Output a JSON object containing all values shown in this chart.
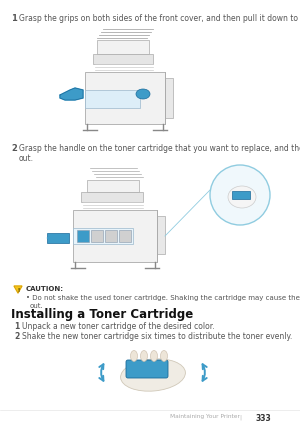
{
  "bg_color": "#ffffff",
  "text_color": "#555555",
  "step1_label": "1",
  "step1_text": "Grasp the grips on both sides of the front cover, and then pull it down to open.",
  "step2_label": "2",
  "step2_text": "Grasp the handle on the toner cartridge that you want to replace, and then pull it\nout.",
  "caution_label": "CAUTION:",
  "caution_line1": "Do not shake the used toner cartridge. Shaking the cartridge may cause the toner to spill",
  "caution_line2": "out.",
  "section_title": "Installing a Toner Cartridge",
  "install_step1_label": "1",
  "install_step1_text": "Unpack a new toner cartridge of the desired color.",
  "install_step2_label": "2",
  "install_step2_text": "Shake the new toner cartridge six times to distribute the toner evenly.",
  "footer_text": "Maintaining Your Printer",
  "footer_sep": "|",
  "footer_page": "333",
  "blue": "#3d9bc8",
  "light_blue_circle": "#c5e8f5",
  "arrow_blue": "#3d9bc8",
  "printer_body": "#f2f2f2",
  "printer_edge": "#aaaaaa",
  "printer_dark": "#888888",
  "warn_yellow": "#f5c518",
  "warn_edge": "#c89010"
}
